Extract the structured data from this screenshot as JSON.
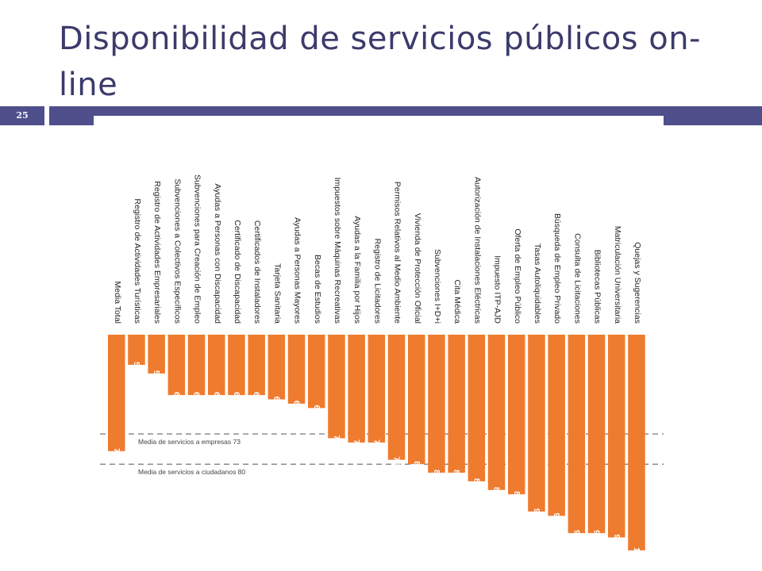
{
  "slide": {
    "title": "Disponibilidad de servicios públicos on-line",
    "number": "25"
  },
  "colors": {
    "accent": "#4f4f8c",
    "title_text": "#3b3b6b",
    "bar": "#ef7b2e",
    "bar_label": "#ffffff",
    "category_text": "#222222",
    "reference_line": "#555555"
  },
  "chart_data": {
    "type": "bar",
    "orientation": "vertical-downward",
    "categories": [
      "Media Total",
      "Registro de Actividades Turísticas",
      "Registro de Actividades Empresariales",
      "Subvenciones a Colectivos Específicos",
      "Subvenciones para Creación de Empleo",
      "Ayudas a Personas con Discapacidad",
      "Certificado de Discapacidad",
      "Certificados de Instaladores",
      "Tarjeta Sanitaria",
      "Ayudas a Personas Mayores",
      "Becas de Estudios",
      "Impuestos sobre Máquinas Recreativas",
      "Ayudas a la Familia por Hijos",
      "Registro de Licitadores",
      "Permisos Relativos al Medio Ambiente",
      "Vivienda de Protección Oficial",
      "Subvenciones I+D+i",
      "Cita Médica",
      "Autorización de Instalaciones Eléctricas",
      "Impuesto ITP-AJD",
      "Oferta de Empleo Público",
      "Tasas Autoliquidables",
      "Búsqueda de Empleo Privado",
      "Consulta de Licitaciones",
      "Bibliotecas Públicas",
      "Matriculación Universitaria",
      "Quejas y Sugerencias"
    ],
    "values": [
      77,
      57,
      59,
      64,
      64,
      64,
      64,
      64,
      65,
      66,
      67,
      74,
      75,
      75,
      79,
      80,
      82,
      82,
      84,
      86,
      87,
      91,
      92,
      96,
      96,
      97,
      100
    ],
    "reference_lines": [
      {
        "label": "Media de servicios a empresas 73",
        "value": 73
      },
      {
        "label": "Media de servicios a ciudadanos 80",
        "value": 80
      }
    ],
    "ylim": [
      50,
      100
    ],
    "grid": false,
    "legend": "none"
  }
}
